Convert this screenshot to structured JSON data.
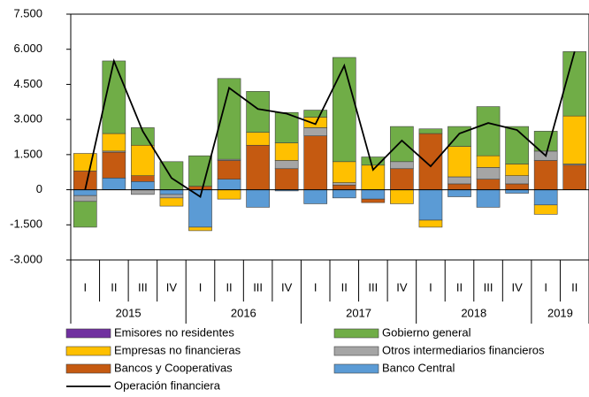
{
  "chart_data": {
    "type": "stacked-bar-line",
    "groups": [
      {
        "label": "2015",
        "categories": [
          "I",
          "II",
          "III",
          "IV"
        ]
      },
      {
        "label": "2016",
        "categories": [
          "I",
          "II",
          "III",
          "IV"
        ]
      },
      {
        "label": "2017",
        "categories": [
          "I",
          "II",
          "III",
          "IV"
        ]
      },
      {
        "label": "2018",
        "categories": [
          "I",
          "II",
          "III",
          "IV"
        ]
      },
      {
        "label": "2019",
        "categories": [
          "I",
          "II"
        ]
      }
    ],
    "series": [
      {
        "name": "Emisores no residentes",
        "color": "#7030a0",
        "values": [
          0,
          0,
          0,
          0,
          0,
          0,
          0,
          0,
          0,
          0,
          0,
          0,
          0,
          0,
          0,
          0,
          0,
          0
        ]
      },
      {
        "name": "Gobierno general",
        "color": "#70ad47",
        "values": [
          -1100,
          3100,
          750,
          1200,
          1300,
          3450,
          1750,
          1300,
          300,
          4450,
          350,
          1500,
          200,
          850,
          2100,
          1600,
          850,
          2750
        ]
      },
      {
        "name": "Empresas no financieras",
        "color": "#ffc000",
        "values": [
          750,
          750,
          1300,
          -350,
          -150,
          -400,
          550,
          750,
          450,
          900,
          1050,
          -600,
          -300,
          1300,
          500,
          500,
          -400,
          2050
        ]
      },
      {
        "name": "Otros intermediarios financieros",
        "color": "#a5a5a5",
        "values": [
          -250,
          50,
          -200,
          -150,
          0,
          50,
          0,
          350,
          350,
          100,
          0,
          300,
          0,
          300,
          500,
          350,
          400,
          50
        ]
      },
      {
        "name": "Bancos y Cooperativas",
        "color": "#c55a11",
        "values": [
          800,
          1100,
          250,
          0,
          150,
          800,
          1900,
          900,
          2300,
          200,
          -150,
          900,
          2400,
          250,
          450,
          250,
          1250,
          1050
        ]
      },
      {
        "name": "Banco Central",
        "color": "#5b9bd5",
        "values": [
          -250,
          500,
          350,
          -200,
          -1600,
          450,
          -750,
          -50,
          -600,
          -350,
          -400,
          0,
          -1300,
          -300,
          -750,
          -150,
          -650,
          0
        ]
      }
    ],
    "line": {
      "name": "Operación financiera",
      "color": "#000000",
      "values": [
        0,
        5500,
        2500,
        500,
        -300,
        4350,
        3450,
        3250,
        2800,
        5300,
        850,
        2100,
        1000,
        2400,
        2850,
        2550,
        1450,
        5900
      ]
    },
    "ylim": [
      -3000,
      7500
    ],
    "yticks": [
      {
        "value": 7500,
        "label": "7.500"
      },
      {
        "value": 6000,
        "label": "6.000"
      },
      {
        "value": 4500,
        "label": "4.500"
      },
      {
        "value": 3000,
        "label": "3.000"
      },
      {
        "value": 1500,
        "label": "1.500"
      },
      0,
      {
        "value": -1500,
        "label": "-1.500"
      },
      {
        "value": -3000,
        "label": "-3.000"
      }
    ]
  }
}
